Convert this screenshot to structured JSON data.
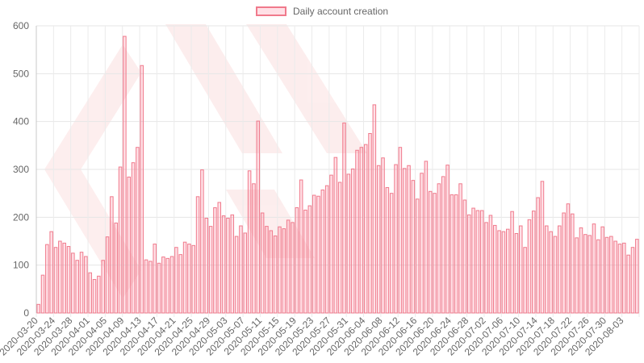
{
  "chart_data": {
    "type": "bar",
    "title": "",
    "xlabel": "",
    "ylabel": "",
    "ylim": [
      0,
      600
    ],
    "yticks": [
      0,
      100,
      200,
      300,
      400,
      500,
      600
    ],
    "grid": true,
    "legend_position": "top-center",
    "series": [
      {
        "name": "Daily account creation",
        "color": "#f07a8c",
        "values": [
          18,
          79,
          143,
          170,
          137,
          150,
          146,
          139,
          125,
          110,
          127,
          118,
          84,
          70,
          77,
          110,
          159,
          243,
          188,
          305,
          578,
          284,
          314,
          346,
          517,
          111,
          108,
          144,
          104,
          117,
          114,
          118,
          137,
          122,
          148,
          144,
          141,
          243,
          299,
          198,
          181,
          220,
          231,
          203,
          198,
          205,
          160,
          182,
          167,
          297,
          270,
          401,
          209,
          181,
          172,
          161,
          180,
          176,
          194,
          189,
          220,
          278,
          215,
          224,
          246,
          244,
          257,
          266,
          288,
          325,
          273,
          397,
          290,
          301,
          340,
          346,
          352,
          375,
          435,
          308,
          324,
          262,
          250,
          310,
          346,
          302,
          308,
          277,
          238,
          292,
          317,
          254,
          250,
          270,
          285,
          309,
          247,
          247,
          270,
          236,
          205,
          219,
          214,
          214,
          189,
          204,
          183,
          172,
          170,
          175,
          212,
          166,
          182,
          137,
          195,
          213,
          241,
          275,
          182,
          170,
          160,
          182,
          209,
          228,
          207,
          157,
          178,
          164,
          162,
          186,
          153,
          180,
          158,
          160,
          150,
          144,
          146,
          121,
          137,
          154
        ]
      }
    ],
    "start_date": "2020-03-20",
    "tick_labels": [
      "2020-03-20",
      "2020-03-24",
      "2020-03-28",
      "2020-04-01",
      "2020-04-05",
      "2020-04-09",
      "2020-04-13",
      "2020-04-17",
      "2020-04-21",
      "2020-04-25",
      "2020-04-29",
      "2020-05-03",
      "2020-05-07",
      "2020-05-11",
      "2020-05-15",
      "2020-05-19",
      "2020-05-23",
      "2020-05-27",
      "2020-05-31",
      "2020-06-04",
      "2020-06-08",
      "2020-06-12",
      "2020-06-16",
      "2020-06-20",
      "2020-06-24",
      "2020-06-28",
      "2020-07-02",
      "2020-07-06",
      "2020-07-10",
      "2020-07-14",
      "2020-07-18",
      "2020-07-22",
      "2020-07-26",
      "2020-07-30",
      "2020-08-03"
    ]
  }
}
